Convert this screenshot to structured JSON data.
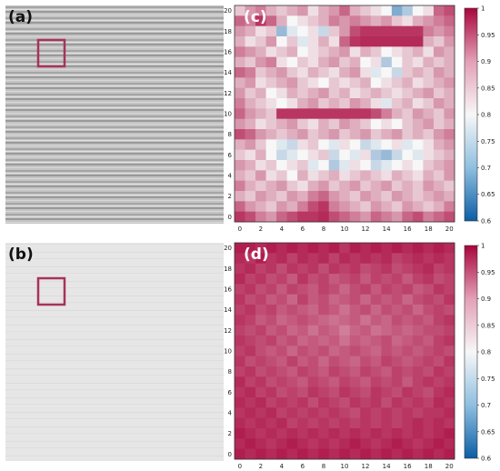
{
  "panels": {
    "a": {
      "label": "(a)"
    },
    "b": {
      "label": "(b)"
    },
    "c": {
      "label": "(c)"
    },
    "d": {
      "label": "(d)"
    }
  },
  "highlight_color": "#a8325a",
  "colormap": {
    "name": "blue-white-red diverging",
    "low_color": "#0b5ea6",
    "mid_color": "#f7f7f7",
    "high_color": "#a8063c"
  },
  "chart_data": [
    {
      "id": "c",
      "type": "heatmap",
      "title": "",
      "xlabel": "",
      "ylabel": "",
      "x_ticks": [
        0,
        2,
        4,
        6,
        8,
        10,
        12,
        14,
        16,
        18,
        20
      ],
      "y_ticks": [
        0,
        2,
        4,
        6,
        8,
        10,
        12,
        14,
        16,
        18,
        20
      ],
      "xlim": [
        0,
        20
      ],
      "ylim": [
        0,
        20
      ],
      "colorbar": {
        "range": [
          0.6,
          1
        ],
        "ticks": [
          0.6,
          0.65,
          0.7,
          0.75,
          0.8,
          0.85,
          0.9,
          0.95,
          1
        ],
        "tick_labels": [
          "0.6",
          "0.65",
          "0.7",
          "0.75",
          "0.8",
          "0.85",
          "0.9",
          "0.95",
          "1"
        ]
      },
      "description_grid_rows_top_to_bottom": [
        [
          0.84,
          0.88,
          0.9,
          0.86,
          0.84,
          0.86,
          0.88,
          0.82,
          0.86,
          0.88,
          0.92,
          0.86,
          0.84,
          0.82,
          0.8,
          0.7,
          0.74,
          0.8,
          0.82,
          0.92,
          0.94
        ],
        [
          0.92,
          0.9,
          0.96,
          0.92,
          0.86,
          0.8,
          0.82,
          0.84,
          0.86,
          0.9,
          0.88,
          0.9,
          0.88,
          0.86,
          0.88,
          0.84,
          0.82,
          0.86,
          0.88,
          0.9,
          0.92
        ],
        [
          0.88,
          0.86,
          0.82,
          0.84,
          0.72,
          0.78,
          0.8,
          0.82,
          0.76,
          0.84,
          0.88,
          0.94,
          0.96,
          0.96,
          0.96,
          0.96,
          0.96,
          0.96,
          0.9,
          0.88,
          0.9
        ],
        [
          0.86,
          0.82,
          0.84,
          0.88,
          0.8,
          0.84,
          0.78,
          0.82,
          0.86,
          0.82,
          0.92,
          0.96,
          0.97,
          0.97,
          0.97,
          0.97,
          0.97,
          0.97,
          0.86,
          0.84,
          0.88
        ],
        [
          0.9,
          0.88,
          0.86,
          0.82,
          0.84,
          0.86,
          0.8,
          0.82,
          0.84,
          0.86,
          0.88,
          0.82,
          0.86,
          0.84,
          0.8,
          0.82,
          0.84,
          0.86,
          0.82,
          0.88,
          0.86
        ],
        [
          0.86,
          0.84,
          0.88,
          0.9,
          0.82,
          0.8,
          0.84,
          0.82,
          0.86,
          0.88,
          0.84,
          0.86,
          0.8,
          0.82,
          0.74,
          0.8,
          0.84,
          0.82,
          0.86,
          0.84,
          0.86
        ],
        [
          0.92,
          0.9,
          0.84,
          0.86,
          0.88,
          0.84,
          0.82,
          0.86,
          0.84,
          0.82,
          0.86,
          0.88,
          0.82,
          0.78,
          0.8,
          0.76,
          0.84,
          0.86,
          0.84,
          0.88,
          0.86
        ],
        [
          0.86,
          0.88,
          0.82,
          0.84,
          0.86,
          0.88,
          0.84,
          0.82,
          0.8,
          0.84,
          0.82,
          0.84,
          0.86,
          0.8,
          0.82,
          0.84,
          0.86,
          0.82,
          0.84,
          0.86,
          0.88
        ],
        [
          0.88,
          0.84,
          0.86,
          0.8,
          0.82,
          0.86,
          0.84,
          0.86,
          0.88,
          0.84,
          0.86,
          0.82,
          0.84,
          0.86,
          0.84,
          0.82,
          0.84,
          0.86,
          0.88,
          0.84,
          0.86
        ],
        [
          0.9,
          0.86,
          0.84,
          0.82,
          0.8,
          0.82,
          0.86,
          0.88,
          0.84,
          0.86,
          0.84,
          0.88,
          0.86,
          0.82,
          0.78,
          0.84,
          0.86,
          0.82,
          0.84,
          0.88,
          0.86
        ],
        [
          0.92,
          0.88,
          0.86,
          0.84,
          0.96,
          0.96,
          0.96,
          0.96,
          0.96,
          0.96,
          0.96,
          0.96,
          0.96,
          0.94,
          0.9,
          0.86,
          0.84,
          0.88,
          0.86,
          0.84,
          0.88
        ],
        [
          0.88,
          0.86,
          0.82,
          0.84,
          0.86,
          0.88,
          0.84,
          0.82,
          0.86,
          0.84,
          0.88,
          0.86,
          0.84,
          0.8,
          0.82,
          0.8,
          0.84,
          0.86,
          0.88,
          0.84,
          0.86
        ],
        [
          0.94,
          0.92,
          0.88,
          0.86,
          0.84,
          0.86,
          0.88,
          0.84,
          0.86,
          0.88,
          0.84,
          0.86,
          0.88,
          0.84,
          0.86,
          0.88,
          0.84,
          0.86,
          0.84,
          0.88,
          0.9
        ],
        [
          0.86,
          0.88,
          0.84,
          0.8,
          0.78,
          0.76,
          0.82,
          0.84,
          0.8,
          0.78,
          0.82,
          0.8,
          0.76,
          0.78,
          0.8,
          0.82,
          0.78,
          0.8,
          0.82,
          0.86,
          0.88
        ],
        [
          0.84,
          0.82,
          0.86,
          0.8,
          0.76,
          0.78,
          0.8,
          0.82,
          0.84,
          0.76,
          0.8,
          0.78,
          0.82,
          0.74,
          0.72,
          0.76,
          0.8,
          0.78,
          0.82,
          0.84,
          0.86
        ],
        [
          0.88,
          0.86,
          0.82,
          0.84,
          0.8,
          0.82,
          0.84,
          0.78,
          0.8,
          0.74,
          0.78,
          0.82,
          0.8,
          0.76,
          0.78,
          0.8,
          0.82,
          0.8,
          0.84,
          0.86,
          0.88
        ],
        [
          0.86,
          0.84,
          0.88,
          0.82,
          0.84,
          0.8,
          0.86,
          0.82,
          0.84,
          0.86,
          0.82,
          0.84,
          0.86,
          0.84,
          0.82,
          0.86,
          0.84,
          0.82,
          0.86,
          0.84,
          0.88
        ],
        [
          0.9,
          0.86,
          0.84,
          0.86,
          0.88,
          0.84,
          0.82,
          0.86,
          0.88,
          0.84,
          0.86,
          0.88,
          0.84,
          0.86,
          0.88,
          0.84,
          0.86,
          0.84,
          0.88,
          0.86,
          0.84
        ],
        [
          0.86,
          0.84,
          0.88,
          0.86,
          0.84,
          0.88,
          0.86,
          0.9,
          0.92,
          0.88,
          0.86,
          0.84,
          0.88,
          0.86,
          0.84,
          0.88,
          0.86,
          0.84,
          0.86,
          0.88,
          0.86
        ],
        [
          0.92,
          0.88,
          0.86,
          0.84,
          0.88,
          0.86,
          0.9,
          0.94,
          0.96,
          0.9,
          0.88,
          0.86,
          0.84,
          0.88,
          0.86,
          0.84,
          0.88,
          0.86,
          0.84,
          0.86,
          0.9
        ],
        [
          0.96,
          0.94,
          0.9,
          0.88,
          0.92,
          0.94,
          0.96,
          0.96,
          0.97,
          0.94,
          0.92,
          0.9,
          0.88,
          0.92,
          0.9,
          0.88,
          0.92,
          0.94,
          0.9,
          0.92,
          0.94
        ]
      ]
    },
    {
      "id": "d",
      "type": "heatmap",
      "title": "",
      "xlabel": "",
      "ylabel": "",
      "x_ticks": [
        0,
        2,
        4,
        6,
        8,
        10,
        12,
        14,
        16,
        18,
        20
      ],
      "y_ticks": [
        0,
        2,
        4,
        6,
        8,
        10,
        12,
        14,
        16,
        18,
        20
      ],
      "xlim": [
        0,
        20
      ],
      "ylim": [
        0,
        20
      ],
      "colorbar": {
        "range": [
          0.6,
          1
        ],
        "ticks": [
          0.6,
          0.65,
          0.7,
          0.75,
          0.8,
          0.85,
          0.9,
          0.95,
          1
        ],
        "tick_labels": [
          "0.6",
          "0.65",
          "0.7",
          "0.75",
          "0.8",
          "0.85",
          "0.9",
          "0.95",
          "1"
        ]
      },
      "description_grid_rows_top_to_bottom": [
        [
          0.98,
          0.98,
          0.97,
          0.98,
          0.97,
          0.98,
          0.97,
          0.98,
          0.97,
          0.98,
          0.96,
          0.98,
          0.97,
          0.98,
          0.97,
          0.98,
          0.97,
          0.98,
          0.97,
          0.98,
          0.97
        ],
        [
          0.97,
          0.96,
          0.98,
          0.96,
          0.97,
          0.95,
          0.97,
          0.96,
          0.97,
          0.95,
          0.97,
          0.96,
          0.97,
          0.96,
          0.97,
          0.95,
          0.96,
          0.97,
          0.96,
          0.97,
          0.96
        ],
        [
          0.96,
          0.97,
          0.95,
          0.96,
          0.94,
          0.96,
          0.95,
          0.96,
          0.94,
          0.96,
          0.95,
          0.96,
          0.94,
          0.95,
          0.96,
          0.94,
          0.95,
          0.96,
          0.97,
          0.95,
          0.96
        ],
        [
          0.97,
          0.95,
          0.96,
          0.94,
          0.95,
          0.93,
          0.96,
          0.94,
          0.95,
          0.93,
          0.94,
          0.95,
          0.93,
          0.95,
          0.94,
          0.95,
          0.93,
          0.95,
          0.96,
          0.94,
          0.95
        ],
        [
          0.95,
          0.96,
          0.94,
          0.95,
          0.93,
          0.95,
          0.94,
          0.93,
          0.95,
          0.94,
          0.92,
          0.94,
          0.95,
          0.93,
          0.95,
          0.94,
          0.95,
          0.93,
          0.94,
          0.96,
          0.95
        ],
        [
          0.96,
          0.94,
          0.95,
          0.93,
          0.94,
          0.92,
          0.95,
          0.93,
          0.94,
          0.92,
          0.93,
          0.94,
          0.92,
          0.94,
          0.93,
          0.94,
          0.92,
          0.94,
          0.95,
          0.94,
          0.96
        ],
        [
          0.95,
          0.96,
          0.94,
          0.95,
          0.93,
          0.94,
          0.93,
          0.92,
          0.94,
          0.93,
          0.91,
          0.93,
          0.94,
          0.92,
          0.94,
          0.93,
          0.94,
          0.92,
          0.94,
          0.95,
          0.94
        ],
        [
          0.96,
          0.95,
          0.93,
          0.94,
          0.92,
          0.93,
          0.94,
          0.93,
          0.92,
          0.91,
          0.92,
          0.93,
          0.91,
          0.93,
          0.92,
          0.94,
          0.93,
          0.94,
          0.93,
          0.95,
          0.96
        ],
        [
          0.95,
          0.94,
          0.95,
          0.93,
          0.94,
          0.92,
          0.93,
          0.91,
          0.93,
          0.92,
          0.9,
          0.92,
          0.93,
          0.91,
          0.92,
          0.93,
          0.92,
          0.93,
          0.94,
          0.94,
          0.95
        ],
        [
          0.96,
          0.95,
          0.94,
          0.95,
          0.93,
          0.94,
          0.92,
          0.93,
          0.92,
          0.93,
          0.91,
          0.93,
          0.92,
          0.93,
          0.94,
          0.92,
          0.93,
          0.94,
          0.93,
          0.95,
          0.96
        ],
        [
          0.95,
          0.96,
          0.94,
          0.93,
          0.94,
          0.92,
          0.94,
          0.93,
          0.94,
          0.92,
          0.93,
          0.94,
          0.93,
          0.92,
          0.94,
          0.93,
          0.94,
          0.93,
          0.94,
          0.95,
          0.94
        ],
        [
          0.96,
          0.94,
          0.95,
          0.94,
          0.93,
          0.95,
          0.93,
          0.94,
          0.92,
          0.94,
          0.93,
          0.92,
          0.94,
          0.93,
          0.95,
          0.94,
          0.93,
          0.94,
          0.95,
          0.94,
          0.96
        ],
        [
          0.95,
          0.96,
          0.94,
          0.95,
          0.94,
          0.93,
          0.95,
          0.94,
          0.93,
          0.95,
          0.94,
          0.93,
          0.95,
          0.94,
          0.93,
          0.95,
          0.94,
          0.95,
          0.94,
          0.96,
          0.95
        ],
        [
          0.97,
          0.95,
          0.96,
          0.94,
          0.95,
          0.94,
          0.93,
          0.95,
          0.94,
          0.93,
          0.95,
          0.94,
          0.93,
          0.95,
          0.94,
          0.95,
          0.93,
          0.95,
          0.96,
          0.95,
          0.96
        ],
        [
          0.96,
          0.97,
          0.95,
          0.96,
          0.94,
          0.95,
          0.94,
          0.96,
          0.95,
          0.94,
          0.96,
          0.95,
          0.94,
          0.96,
          0.95,
          0.94,
          0.96,
          0.95,
          0.94,
          0.96,
          0.97
        ],
        [
          0.97,
          0.96,
          0.97,
          0.95,
          0.96,
          0.95,
          0.96,
          0.94,
          0.96,
          0.95,
          0.94,
          0.96,
          0.95,
          0.96,
          0.94,
          0.96,
          0.95,
          0.96,
          0.95,
          0.97,
          0.96
        ],
        [
          0.96,
          0.97,
          0.96,
          0.97,
          0.95,
          0.96,
          0.95,
          0.96,
          0.95,
          0.96,
          0.95,
          0.94,
          0.96,
          0.95,
          0.96,
          0.95,
          0.96,
          0.95,
          0.96,
          0.96,
          0.97
        ],
        [
          0.97,
          0.96,
          0.97,
          0.96,
          0.97,
          0.95,
          0.96,
          0.95,
          0.96,
          0.95,
          0.96,
          0.95,
          0.96,
          0.95,
          0.96,
          0.95,
          0.96,
          0.97,
          0.96,
          0.97,
          0.96
        ],
        [
          0.98,
          0.97,
          0.96,
          0.97,
          0.96,
          0.97,
          0.96,
          0.97,
          0.96,
          0.97,
          0.96,
          0.97,
          0.96,
          0.97,
          0.96,
          0.97,
          0.96,
          0.97,
          0.96,
          0.97,
          0.98
        ],
        [
          0.97,
          0.98,
          0.97,
          0.96,
          0.97,
          0.98,
          0.97,
          0.96,
          0.97,
          0.96,
          0.97,
          0.98,
          0.97,
          0.96,
          0.97,
          0.98,
          0.97,
          0.96,
          0.97,
          0.98,
          0.97
        ],
        [
          0.98,
          0.97,
          0.98,
          0.97,
          0.98,
          0.97,
          0.98,
          0.97,
          0.98,
          0.97,
          0.98,
          0.97,
          0.98,
          0.97,
          0.98,
          0.97,
          0.98,
          0.97,
          0.98,
          0.97,
          0.98
        ]
      ]
    }
  ]
}
